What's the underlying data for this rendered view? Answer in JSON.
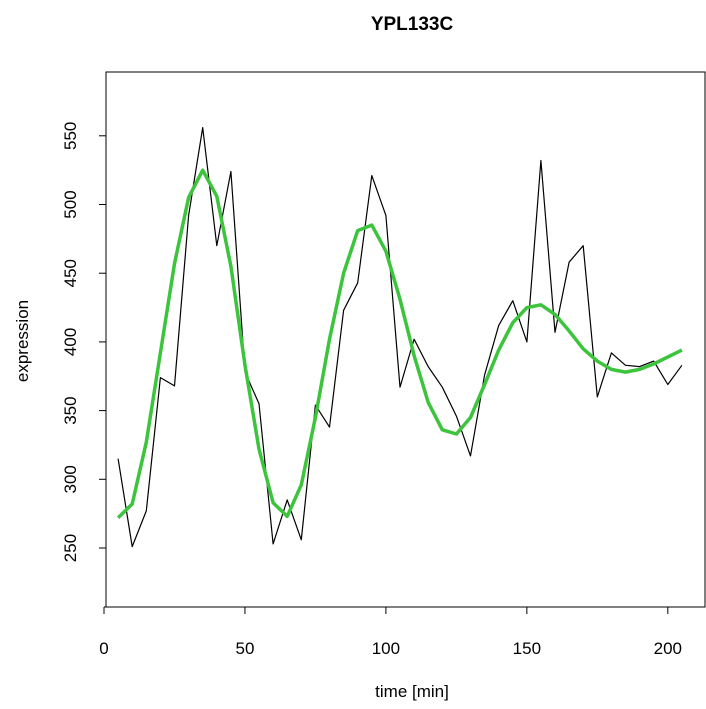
{
  "chart_data": {
    "type": "line",
    "title": "YPL133C",
    "xlabel": "time [min]",
    "ylabel": "expression",
    "xlim": [
      0,
      210
    ],
    "ylim": [
      200,
      590
    ],
    "x_ticks": [
      0,
      50,
      100,
      150,
      200
    ],
    "y_ticks": [
      250,
      300,
      350,
      400,
      450,
      500,
      550
    ],
    "grid": false,
    "legend": "none",
    "series": [
      {
        "color": "#000000",
        "style": "thin",
        "x": [
          5,
          10,
          15,
          20,
          25,
          30,
          35,
          40,
          45,
          50,
          55,
          60,
          65,
          70,
          75,
          80,
          85,
          90,
          95,
          100,
          105,
          110,
          115,
          120,
          125,
          130,
          135,
          140,
          145,
          150,
          155,
          160,
          165,
          170,
          175,
          180,
          185,
          190,
          195,
          200,
          205
        ],
        "y": [
          315,
          251,
          277,
          374,
          368,
          492,
          556,
          470,
          524,
          378,
          355,
          253,
          285,
          256,
          354,
          338,
          423,
          443,
          521,
          492,
          367,
          402,
          382,
          367,
          346,
          317,
          376,
          412,
          430,
          400,
          532,
          407,
          458,
          470,
          360,
          392,
          383,
          382,
          386,
          369,
          383
        ]
      },
      {
        "color": "#3CC43C",
        "style": "thick",
        "x": [
          5,
          10,
          15,
          20,
          25,
          30,
          35,
          40,
          45,
          50,
          55,
          60,
          65,
          70,
          75,
          80,
          85,
          90,
          95,
          100,
          105,
          110,
          115,
          120,
          125,
          130,
          135,
          140,
          145,
          150,
          155,
          160,
          165,
          170,
          175,
          180,
          185,
          190,
          195,
          200,
          205
        ],
        "y": [
          272,
          282,
          327,
          392,
          457,
          505,
          525,
          506,
          455,
          383,
          322,
          283,
          273,
          296,
          345,
          402,
          450,
          481,
          485,
          466,
          431,
          390,
          356,
          336,
          333,
          345,
          369,
          394,
          414,
          425,
          427,
          420,
          408,
          395,
          386,
          380,
          378,
          380,
          384,
          389,
          394
        ]
      }
    ]
  }
}
